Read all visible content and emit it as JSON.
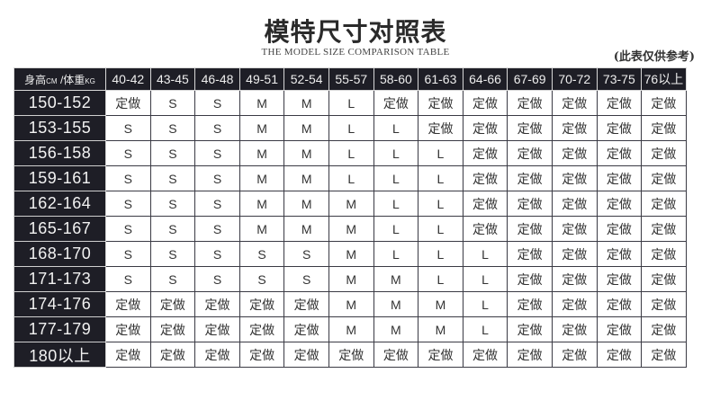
{
  "title": "模特尺寸对照表",
  "subtitle": "THE MODEL SIZE COMPARISON TABLE",
  "note": "(此表仅供参考)",
  "table": {
    "corner": {
      "height_label": "身高",
      "height_unit": "CM",
      "sep": " /",
      "weight_label": "体重",
      "weight_unit": "KG"
    },
    "columns": [
      "40-42",
      "43-45",
      "46-48",
      "49-51",
      "52-54",
      "55-57",
      "58-60",
      "61-63",
      "64-66",
      "67-69",
      "70-72",
      "73-75",
      "76以上"
    ],
    "rows": [
      {
        "height": "150-152",
        "cells": [
          "定做",
          "S",
          "S",
          "M",
          "M",
          "L",
          "定做",
          "定做",
          "定做",
          "定做",
          "定做",
          "定做",
          "定做"
        ]
      },
      {
        "height": "153-155",
        "cells": [
          "S",
          "S",
          "S",
          "M",
          "M",
          "L",
          "L",
          "定做",
          "定做",
          "定做",
          "定做",
          "定做",
          "定做"
        ]
      },
      {
        "height": "156-158",
        "cells": [
          "S",
          "S",
          "S",
          "M",
          "M",
          "L",
          "L",
          "L",
          "定做",
          "定做",
          "定做",
          "定做",
          "定做"
        ]
      },
      {
        "height": "159-161",
        "cells": [
          "S",
          "S",
          "S",
          "M",
          "M",
          "L",
          "L",
          "L",
          "定做",
          "定做",
          "定做",
          "定做",
          "定做"
        ]
      },
      {
        "height": "162-164",
        "cells": [
          "S",
          "S",
          "S",
          "M",
          "M",
          "M",
          "L",
          "L",
          "定做",
          "定做",
          "定做",
          "定做",
          "定做"
        ]
      },
      {
        "height": "165-167",
        "cells": [
          "S",
          "S",
          "S",
          "M",
          "M",
          "M",
          "L",
          "L",
          "定做",
          "定做",
          "定做",
          "定做",
          "定做"
        ]
      },
      {
        "height": "168-170",
        "cells": [
          "S",
          "S",
          "S",
          "S",
          "S",
          "M",
          "L",
          "L",
          "L",
          "定做",
          "定做",
          "定做",
          "定做"
        ]
      },
      {
        "height": "171-173",
        "cells": [
          "S",
          "S",
          "S",
          "S",
          "S",
          "M",
          "M",
          "L",
          "L",
          "定做",
          "定做",
          "定做",
          "定做"
        ]
      },
      {
        "height": "174-176",
        "cells": [
          "定做",
          "定做",
          "定做",
          "定做",
          "定做",
          "M",
          "M",
          "M",
          "L",
          "定做",
          "定做",
          "定做",
          "定做"
        ]
      },
      {
        "height": "177-179",
        "cells": [
          "定做",
          "定做",
          "定做",
          "定做",
          "定做",
          "M",
          "M",
          "M",
          "L",
          "定做",
          "定做",
          "定做",
          "定做"
        ]
      },
      {
        "height": "180以上",
        "cells": [
          "定做",
          "定做",
          "定做",
          "定做",
          "定做",
          "定做",
          "定做",
          "定做",
          "定做",
          "定做",
          "定做",
          "定做",
          "定做"
        ]
      }
    ]
  },
  "colors": {
    "header_bg": "#1e1e26",
    "grid": "#3a3a44"
  }
}
